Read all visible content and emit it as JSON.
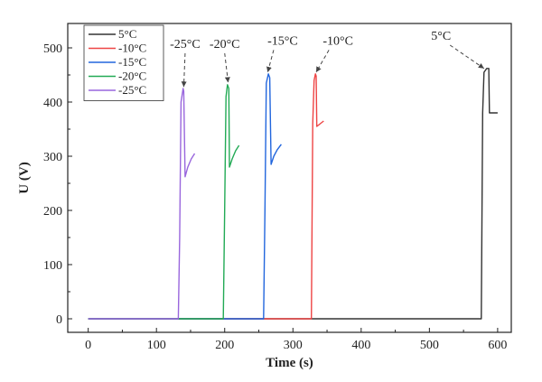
{
  "chart_data": {
    "type": "line",
    "title": "",
    "xlabel": "Time (s)",
    "ylabel": "U (V)",
    "xlim": [
      -30,
      620
    ],
    "ylim": [
      -25,
      545
    ],
    "xticks": [
      0,
      100,
      200,
      300,
      400,
      500,
      600
    ],
    "yticks": [
      0,
      100,
      200,
      300,
      400,
      500
    ],
    "grid": false,
    "legend": "top-left",
    "series": [
      {
        "name": "5°C",
        "color": "#333333",
        "points": [
          [
            0,
            0
          ],
          [
            576,
            0
          ],
          [
            578,
            380
          ],
          [
            580,
            455
          ],
          [
            584,
            462
          ],
          [
            587,
            462
          ],
          [
            588,
            380
          ],
          [
            600,
            380
          ]
        ]
      },
      {
        "name": "-10°C",
        "color": "#ee4444",
        "points": [
          [
            0,
            0
          ],
          [
            327,
            0
          ],
          [
            329,
            360
          ],
          [
            331,
            440
          ],
          [
            333,
            452
          ],
          [
            334,
            448
          ],
          [
            335,
            355
          ],
          [
            340,
            360
          ],
          [
            345,
            365
          ]
        ]
      },
      {
        "name": "-15°C",
        "color": "#2266dd",
        "points": [
          [
            0,
            0
          ],
          [
            257,
            0
          ],
          [
            259,
            200
          ],
          [
            261,
            435
          ],
          [
            264,
            452
          ],
          [
            266,
            445
          ],
          [
            268,
            285
          ],
          [
            272,
            300
          ],
          [
            277,
            312
          ],
          [
            283,
            322
          ]
        ]
      },
      {
        "name": "-20°C",
        "color": "#22aa55",
        "points": [
          [
            0,
            0
          ],
          [
            198,
            0
          ],
          [
            200,
            200
          ],
          [
            202,
            410
          ],
          [
            204,
            432
          ],
          [
            206,
            425
          ],
          [
            207,
            280
          ],
          [
            211,
            295
          ],
          [
            216,
            310
          ],
          [
            221,
            320
          ]
        ]
      },
      {
        "name": "-25°C",
        "color": "#9966dd",
        "points": [
          [
            0,
            0
          ],
          [
            132,
            0
          ],
          [
            134,
            150
          ],
          [
            136,
            400
          ],
          [
            139,
            425
          ],
          [
            140,
            420
          ],
          [
            142,
            262
          ],
          [
            146,
            280
          ],
          [
            151,
            295
          ],
          [
            156,
            305
          ]
        ]
      }
    ],
    "annotations": [
      {
        "text": "-25°C",
        "x": 142,
        "y": 500,
        "tip_x": 140,
        "tip_y": 428
      },
      {
        "text": "-20°C",
        "x": 200,
        "y": 500,
        "tip_x": 205,
        "tip_y": 436
      },
      {
        "text": "-15°C",
        "x": 285,
        "y": 506,
        "tip_x": 263,
        "tip_y": 455
      },
      {
        "text": "-10°C",
        "x": 366,
        "y": 506,
        "tip_x": 334,
        "tip_y": 455
      },
      {
        "text": "5°C",
        "x": 517,
        "y": 515,
        "tip_x": 580,
        "tip_y": 462
      }
    ]
  }
}
